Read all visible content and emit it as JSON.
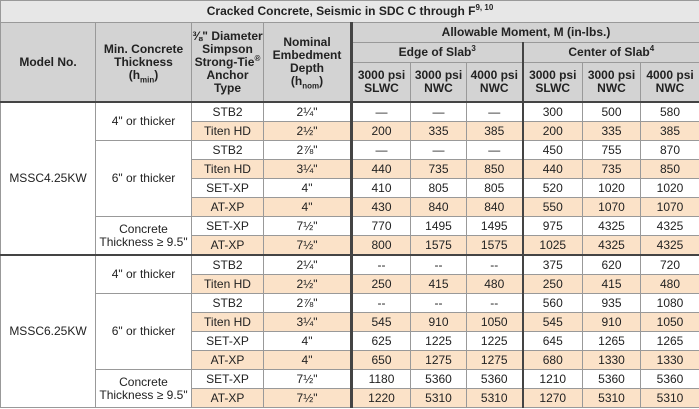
{
  "title": {
    "text": "Cracked Concrete, Seismic in SDC C through F",
    "sup": "9, 10"
  },
  "header": {
    "model": "Model No.",
    "thickness": {
      "text": "Min. Concrete Thickness",
      "open": "(h",
      "sub": "min",
      "close": ")"
    },
    "anchor": {
      "fraction": "⅜\"",
      "text": "Diameter Simpson Strong-Tie",
      "reg": "®",
      "tail": "Anchor Type"
    },
    "depth": {
      "text": "Nominal Embedment Depth",
      "open": "(h",
      "sub": "nom",
      "close": ")"
    },
    "moment": "Allowable Moment, M (in-lbs.)",
    "edge": {
      "text": "Edge of Slab",
      "sup": "3"
    },
    "center": {
      "text": "Center of Slab",
      "sup": "4"
    },
    "columns": [
      "3000 psi SLWC",
      "3000 psi NWC",
      "4000 psi NWC",
      "3000 psi SLWC",
      "3000 psi NWC",
      "4000 psi NWC"
    ]
  },
  "groups": [
    {
      "model": "MSSC4.25KW",
      "sections": [
        {
          "thickness": "4\" or thicker",
          "rows": [
            {
              "anchor": "STB2",
              "depth": "2¼\"",
              "values": [
                "—",
                "—",
                "—",
                "300",
                "500",
                "580"
              ]
            },
            {
              "anchor": "Titen HD",
              "depth": "2½\"",
              "values": [
                "200",
                "335",
                "385",
                "200",
                "335",
                "385"
              ]
            }
          ]
        },
        {
          "thickness": "6\" or thicker",
          "rows": [
            {
              "anchor": "STB2",
              "depth": "2⅞\"",
              "values": [
                "—",
                "—",
                "—",
                "450",
                "755",
                "870"
              ]
            },
            {
              "anchor": "Titen HD",
              "depth": "3¼\"",
              "values": [
                "440",
                "735",
                "850",
                "440",
                "735",
                "850"
              ]
            },
            {
              "anchor": "SET-XP",
              "depth": "4\"",
              "values": [
                "410",
                "805",
                "805",
                "520",
                "1020",
                "1020"
              ]
            },
            {
              "anchor": "AT-XP",
              "depth": "4\"",
              "values": [
                "430",
                "840",
                "840",
                "550",
                "1070",
                "1070"
              ]
            }
          ]
        },
        {
          "thickness": "Concrete Thickness ≥ 9.5\"",
          "rows": [
            {
              "anchor": "SET-XP",
              "depth": "7½\"",
              "values": [
                "770",
                "1495",
                "1495",
                "975",
                "4325",
                "4325"
              ]
            },
            {
              "anchor": "AT-XP",
              "depth": "7½\"",
              "values": [
                "800",
                "1575",
                "1575",
                "1025",
                "4325",
                "4325"
              ]
            }
          ]
        }
      ]
    },
    {
      "model": "MSSC6.25KW",
      "sections": [
        {
          "thickness": "4\" or thicker",
          "rows": [
            {
              "anchor": "STB2",
              "depth": "2¼\"",
              "values": [
                "--",
                "--",
                "--",
                "375",
                "620",
                "720"
              ]
            },
            {
              "anchor": "Titen HD",
              "depth": "2½\"",
              "values": [
                "250",
                "415",
                "480",
                "250",
                "415",
                "480"
              ]
            }
          ]
        },
        {
          "thickness": "6\" or thicker",
          "rows": [
            {
              "anchor": "STB2",
              "depth": "2⅞\"",
              "values": [
                "--",
                "--",
                "--",
                "560",
                "935",
                "1080"
              ]
            },
            {
              "anchor": "Titen HD",
              "depth": "3¼\"",
              "values": [
                "545",
                "910",
                "1050",
                "545",
                "910",
                "1050"
              ]
            },
            {
              "anchor": "SET-XP",
              "depth": "4\"",
              "values": [
                "625",
                "1225",
                "1225",
                "645",
                "1265",
                "1265"
              ]
            },
            {
              "anchor": "AT-XP",
              "depth": "4\"",
              "values": [
                "650",
                "1275",
                "1275",
                "680",
                "1330",
                "1330"
              ]
            }
          ]
        },
        {
          "thickness": "Concrete Thickness ≥ 9.5\"",
          "rows": [
            {
              "anchor": "SET-XP",
              "depth": "7½\"",
              "values": [
                "1180",
                "5360",
                "5360",
                "1210",
                "5360",
                "5360"
              ]
            },
            {
              "anchor": "AT-XP",
              "depth": "7½\"",
              "values": [
                "1220",
                "5310",
                "5310",
                "1270",
                "5310",
                "5310"
              ]
            }
          ]
        }
      ]
    }
  ]
}
